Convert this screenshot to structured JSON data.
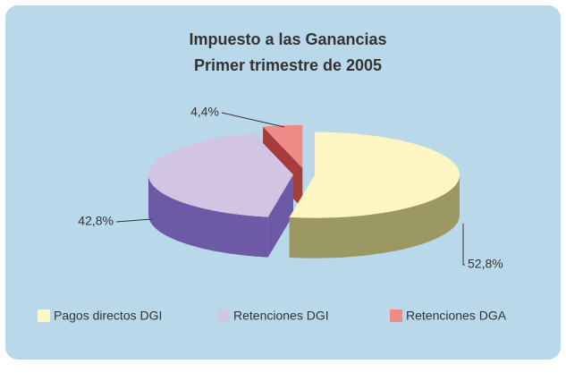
{
  "chart_data": {
    "type": "pie",
    "title": "Impuesto a las Ganancias",
    "subtitle": "Primer trimestre de 2005",
    "categories": [
      "Pagos directos DGI",
      "Retenciones DGI",
      "Retenciones DGA"
    ],
    "values": [
      52.8,
      42.8,
      4.4
    ],
    "value_labels": [
      "52,8%",
      "42,8%",
      "4,4%"
    ],
    "colors": [
      "#fdf6c3",
      "#d2c4e3",
      "#f08a86"
    ],
    "side_colors": [
      "#9c9862",
      "#6c5aa6",
      "#a63c3c"
    ],
    "legend": "bottom"
  }
}
